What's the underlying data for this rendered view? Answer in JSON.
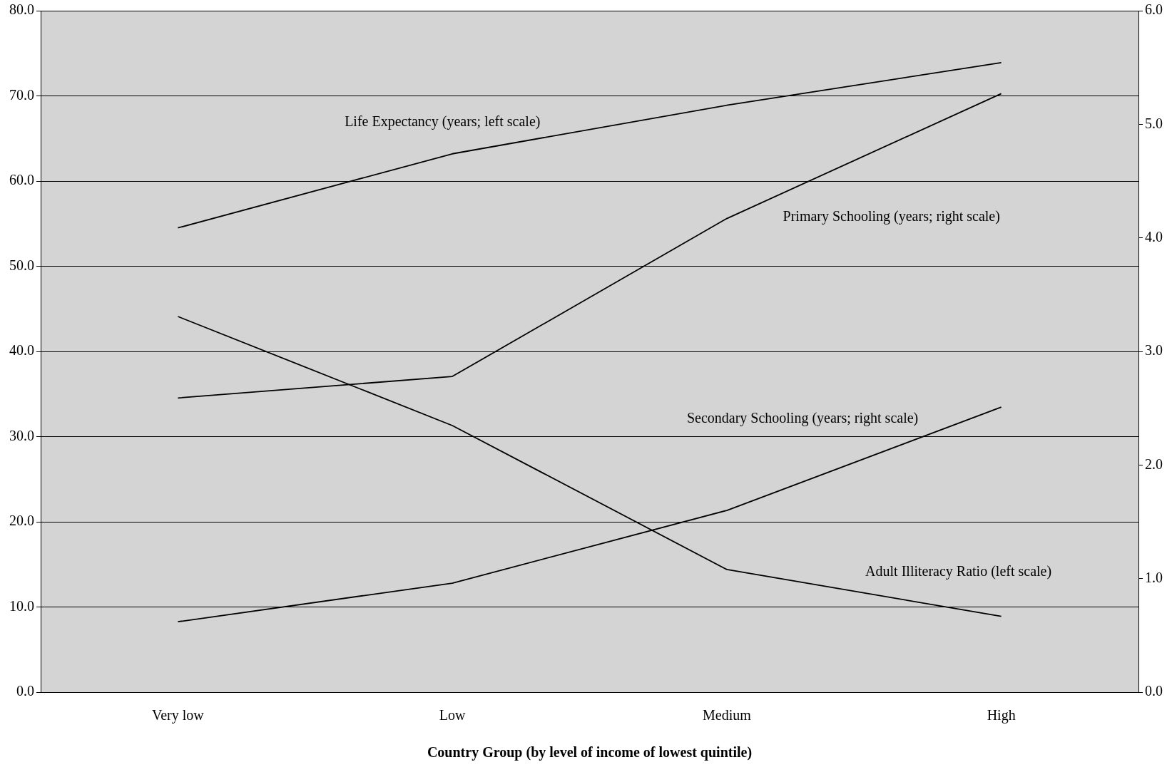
{
  "chart_data": {
    "type": "line",
    "xlabel": "Country Group (by level of income of lowest quintile)",
    "categories": [
      "Very low",
      "Low",
      "Medium",
      "High"
    ],
    "series": [
      {
        "name": "Life Expectancy (years; left scale)",
        "color": "#000000",
        "values": [
          54.5,
          63.2,
          68.9,
          73.9
        ]
      },
      {
        "name": "Primary Schooling (years; right scale)",
        "color": "#000000",
        "values": [
          2.59,
          2.78,
          4.17,
          5.27
        ],
        "axis": "y2"
      },
      {
        "name": "Secondary Schooling (years; right scale)",
        "color": "#000000",
        "values": [
          0.62,
          0.96,
          1.6,
          2.51
        ],
        "axis": "y2"
      },
      {
        "name": "Adult Illiteracy Ratio (left scale)",
        "color": "#000000",
        "values": [
          44.1,
          31.3,
          14.4,
          8.9
        ]
      }
    ],
    "ylim": [
      0,
      80
    ],
    "yticks": [
      {
        "value": 0,
        "label": "0.0"
      },
      {
        "value": 10,
        "label": "10.0"
      },
      {
        "value": 20,
        "label": "20.0"
      },
      {
        "value": 30,
        "label": "30.0"
      },
      {
        "value": 40,
        "label": "40.0"
      },
      {
        "value": 50,
        "label": "50.0"
      },
      {
        "value": 60,
        "label": "60.0"
      },
      {
        "value": 70,
        "label": "70.0"
      },
      {
        "value": 80,
        "label": "80.0"
      }
    ],
    "y2lim": [
      0,
      6
    ],
    "y2ticks": [
      {
        "value": 0,
        "label": "0.0"
      },
      {
        "value": 1,
        "label": "1.0"
      },
      {
        "value": 2,
        "label": "2.0"
      },
      {
        "value": 3,
        "label": "3.0"
      },
      {
        "value": 4,
        "label": "4.0"
      },
      {
        "value": 5,
        "label": "5.0"
      },
      {
        "value": 6,
        "label": "6.0"
      }
    ],
    "grid": "y",
    "legend": false,
    "marker": "none",
    "line_style": "solid"
  }
}
